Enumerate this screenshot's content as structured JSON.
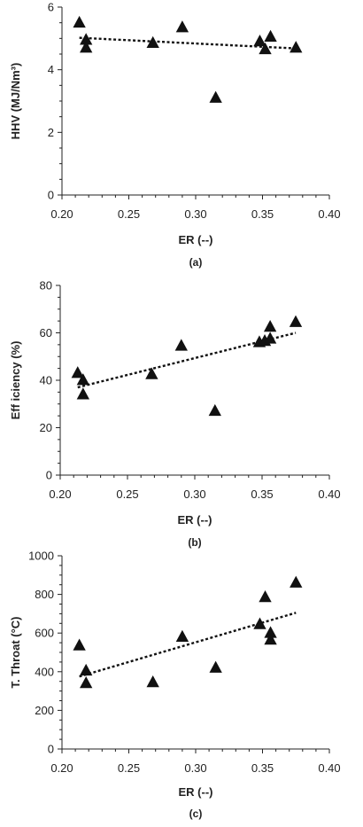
{
  "chart_data": [
    {
      "type": "scatter",
      "caption": "(a)",
      "xlabel": "ER (--)",
      "ylabel": "HHV (MJ/Nm³)",
      "xlim": [
        0.2,
        0.4
      ],
      "ylim": [
        0,
        6
      ],
      "xticks": [
        "0.20",
        "0.25",
        "0.30",
        "0.35",
        "0.40"
      ],
      "yticks": [
        "0",
        "2",
        "4",
        "6"
      ],
      "grid": false,
      "legend": "none",
      "marker": "triangle",
      "points": [
        {
          "x": 0.213,
          "y": 5.5
        },
        {
          "x": 0.218,
          "y": 4.95
        },
        {
          "x": 0.218,
          "y": 4.7
        },
        {
          "x": 0.268,
          "y": 4.85
        },
        {
          "x": 0.29,
          "y": 5.35
        },
        {
          "x": 0.315,
          "y": 3.1
        },
        {
          "x": 0.348,
          "y": 4.9
        },
        {
          "x": 0.352,
          "y": 4.65
        },
        {
          "x": 0.356,
          "y": 5.05
        },
        {
          "x": 0.375,
          "y": 4.7
        }
      ],
      "trendline": {
        "style": "dotted",
        "x": [
          0.213,
          0.375
        ],
        "y": [
          5.02,
          4.68
        ]
      }
    },
    {
      "type": "scatter",
      "caption": "(b)",
      "xlabel": "ER (--)",
      "ylabel": "Eff iciency (%)",
      "xlim": [
        0.2,
        0.4
      ],
      "ylim": [
        0,
        80
      ],
      "xticks": [
        "0.20",
        "0.25",
        "0.30",
        "0.35",
        "0.40"
      ],
      "yticks": [
        "0",
        "20",
        "40",
        "60",
        "80"
      ],
      "grid": false,
      "legend": "none",
      "marker": "triangle",
      "points": [
        {
          "x": 0.213,
          "y": 43
        },
        {
          "x": 0.217,
          "y": 40
        },
        {
          "x": 0.217,
          "y": 34
        },
        {
          "x": 0.268,
          "y": 42.5
        },
        {
          "x": 0.29,
          "y": 54.5
        },
        {
          "x": 0.315,
          "y": 27
        },
        {
          "x": 0.348,
          "y": 56
        },
        {
          "x": 0.352,
          "y": 56.5
        },
        {
          "x": 0.356,
          "y": 57.5
        },
        {
          "x": 0.356,
          "y": 62.5
        },
        {
          "x": 0.375,
          "y": 64.5
        }
      ],
      "trendline": {
        "style": "dotted",
        "x": [
          0.213,
          0.375
        ],
        "y": [
          37,
          60
        ]
      }
    },
    {
      "type": "scatter",
      "caption": "(c)",
      "xlabel": "ER (--)",
      "ylabel": "T. Throat (°C)",
      "xlim": [
        0.2,
        0.4
      ],
      "ylim": [
        0,
        1000
      ],
      "xticks": [
        "0.20",
        "0.25",
        "0.30",
        "0.35",
        "0.40"
      ],
      "yticks": [
        "0",
        "200",
        "400",
        "600",
        "800",
        "1000"
      ],
      "grid": false,
      "legend": "none",
      "marker": "triangle",
      "points": [
        {
          "x": 0.213,
          "y": 535
        },
        {
          "x": 0.218,
          "y": 405
        },
        {
          "x": 0.218,
          "y": 340
        },
        {
          "x": 0.268,
          "y": 345
        },
        {
          "x": 0.29,
          "y": 580
        },
        {
          "x": 0.315,
          "y": 420
        },
        {
          "x": 0.348,
          "y": 645
        },
        {
          "x": 0.352,
          "y": 785
        },
        {
          "x": 0.356,
          "y": 600
        },
        {
          "x": 0.356,
          "y": 565
        },
        {
          "x": 0.375,
          "y": 860
        }
      ],
      "trendline": {
        "style": "dotted",
        "x": [
          0.213,
          0.375
        ],
        "y": [
          375,
          705
        ]
      }
    }
  ]
}
